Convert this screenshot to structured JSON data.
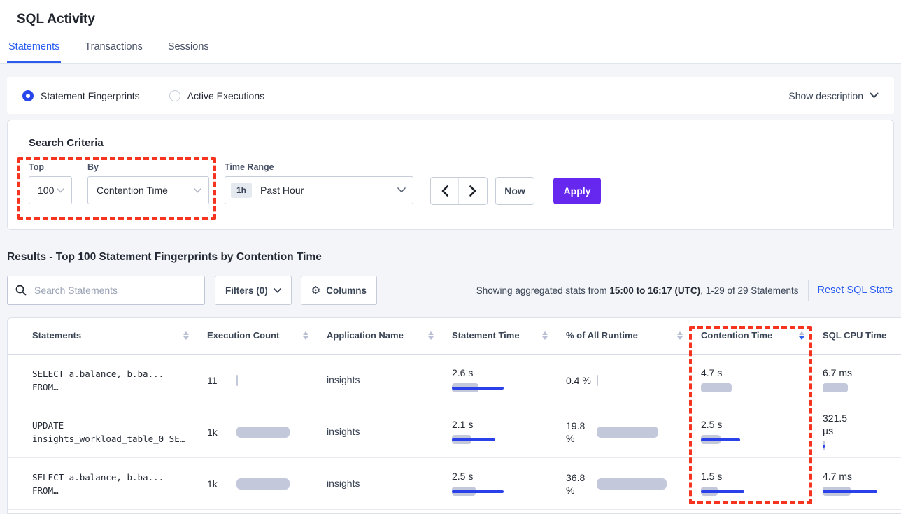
{
  "page": {
    "title": "SQL Activity"
  },
  "tabs": [
    {
      "label": "Statements",
      "active": true
    },
    {
      "label": "Transactions",
      "active": false
    },
    {
      "label": "Sessions",
      "active": false
    }
  ],
  "view_toggle": {
    "options": [
      {
        "label": "Statement Fingerprints",
        "selected": true
      },
      {
        "label": "Active Executions",
        "selected": false
      }
    ],
    "show_description_label": "Show description"
  },
  "search_criteria": {
    "heading": "Search Criteria",
    "top": {
      "label": "Top",
      "value": "100"
    },
    "by": {
      "label": "By",
      "value": "Contention Time"
    },
    "time_range": {
      "label": "Time Range",
      "badge": "1h",
      "value": "Past Hour"
    },
    "now_label": "Now",
    "apply_label": "Apply"
  },
  "results": {
    "heading": "Results - Top 100 Statement Fingerprints by Contention Time",
    "search_placeholder": "Search Statements",
    "filters_label": "Filters (0)",
    "columns_label": "Columns",
    "stats_prefix": "Showing aggregated stats from ",
    "stats_bold": "15:00 to 16:17 (UTC)",
    "stats_suffix": ", 1-29 of 29 Statements",
    "reset_label": "Reset SQL Stats"
  },
  "table": {
    "columns": [
      {
        "label": "Statements"
      },
      {
        "label": "Execution Count"
      },
      {
        "label": "Application Name"
      },
      {
        "label": "Statement Time"
      },
      {
        "label": "% of All Runtime"
      },
      {
        "label": "Contention Time",
        "sorted": "desc"
      },
      {
        "label": "SQL CPU Time"
      }
    ],
    "rows": [
      {
        "statement": {
          "line1": "SELECT a.balance, b.ba...",
          "line2": "FROM…"
        },
        "exec": {
          "lines": [
            "11"
          ],
          "gray": 2,
          "blue": 0
        },
        "app": "insights",
        "stmt_time": {
          "lines": [
            "2.6 s"
          ],
          "gray": 38,
          "blue": 74
        },
        "runtime": {
          "lines": [
            "0.4 %"
          ],
          "gray": 2,
          "blue": 0
        },
        "contention": {
          "lines": [
            "4.7 s"
          ],
          "gray": 44,
          "blue": 0
        },
        "cpu": {
          "lines": [
            "6.7 ms"
          ],
          "gray": 36,
          "blue": 0
        }
      },
      {
        "statement": {
          "line1": "UPDATE",
          "line2": "insights_workload_table_0 SE…"
        },
        "exec": {
          "lines": [
            "1k"
          ],
          "gray": 76,
          "blue": 0
        },
        "app": "insights",
        "stmt_time": {
          "lines": [
            "2.1 s"
          ],
          "gray": 28,
          "blue": 62
        },
        "runtime": {
          "lines": [
            "19.8",
            "%"
          ],
          "gray": 88,
          "blue": 0
        },
        "contention": {
          "lines": [
            "2.5 s"
          ],
          "gray": 28,
          "blue": 56
        },
        "cpu": {
          "lines": [
            "321.5",
            "µs"
          ],
          "gray": 4,
          "blue": 3
        }
      },
      {
        "statement": {
          "line1": "SELECT a.balance, b.ba...",
          "line2": "FROM…"
        },
        "exec": {
          "lines": [
            "1k"
          ],
          "gray": 76,
          "blue": 0
        },
        "app": "insights",
        "stmt_time": {
          "lines": [
            "2.5 s"
          ],
          "gray": 34,
          "blue": 74
        },
        "runtime": {
          "lines": [
            "36.8",
            "%"
          ],
          "gray": 100,
          "blue": 0
        },
        "contention": {
          "lines": [
            "1.5 s"
          ],
          "gray": 24,
          "blue": 62
        },
        "cpu": {
          "lines": [
            "4.7 ms"
          ],
          "gray": 40,
          "blue": 78
        }
      }
    ]
  },
  "colors": {
    "accent_blue": "#2a5cf0",
    "apply_purple": "#6627ee",
    "highlight_red": "#f5331e",
    "bar_gray": "#c3c8db",
    "bar_blue": "#2a40e8"
  }
}
